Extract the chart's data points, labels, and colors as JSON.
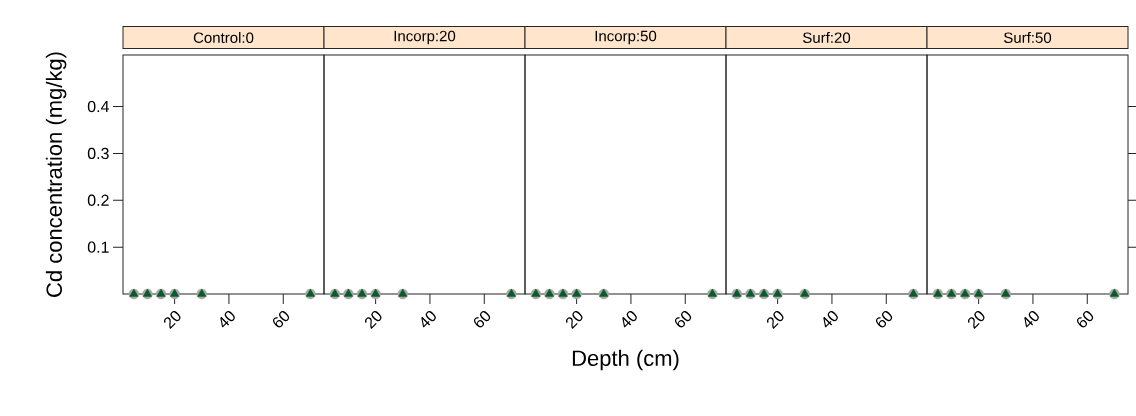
{
  "chart_data": [
    {
      "type": "scatter",
      "title": "Control:0",
      "ylabel": "Cd concentration (mg/kg)",
      "x": [
        5,
        10,
        15,
        20,
        30,
        70
      ],
      "series": [
        {
          "color": "#a6a6a6",
          "marker": "circle",
          "values": [
            0,
            0,
            0,
            0,
            0,
            0
          ]
        },
        {
          "color": "#0b5a2a",
          "marker": "triangle",
          "values": [
            0,
            0,
            0,
            0,
            0,
            0
          ]
        }
      ],
      "xlim": [
        1,
        75
      ],
      "ylim": [
        0,
        0.51
      ],
      "xticks": [
        20,
        40,
        60
      ],
      "yticks": [
        0.1,
        0.2,
        0.3,
        0.4
      ]
    },
    {
      "type": "scatter",
      "title": "Incorp:20",
      "x": [
        5,
        10,
        15,
        20,
        30,
        70
      ],
      "series": [
        {
          "color": "#a6a6a6",
          "marker": "circle",
          "values": [
            0,
            0,
            0,
            0,
            0,
            0
          ]
        },
        {
          "color": "#0b5a2a",
          "marker": "triangle",
          "values": [
            0,
            0,
            0,
            0,
            0,
            0
          ]
        }
      ],
      "xlim": [
        1,
        75
      ],
      "ylim": [
        0,
        0.51
      ],
      "xticks": [
        20,
        40,
        60
      ],
      "yticks": [
        0.1,
        0.2,
        0.3,
        0.4
      ],
      "tick_labels": "x"
    },
    {
      "type": "scatter",
      "title": "Incorp:50",
      "xlabel": "Depth (cm)",
      "x": [
        5,
        10,
        15,
        20,
        30,
        70
      ],
      "series": [
        {
          "color": "#a6a6a6",
          "marker": "circle",
          "values": [
            0,
            0,
            0,
            0,
            0,
            0
          ]
        },
        {
          "color": "#0b5a2a",
          "marker": "triangle",
          "values": [
            0,
            0,
            0,
            0,
            0,
            0
          ]
        }
      ],
      "xlim": [
        1,
        75
      ],
      "ylim": [
        0,
        0.51
      ],
      "xticks": [
        20,
        40,
        60
      ],
      "yticks": [
        0.1,
        0.2,
        0.3,
        0.4
      ],
      "tick_labels": "x"
    },
    {
      "type": "scatter",
      "title": "Surf:20",
      "x": [
        5,
        10,
        15,
        20,
        30,
        70
      ],
      "series": [
        {
          "color": "#a6a6a6",
          "marker": "circle",
          "values": [
            0,
            0,
            0,
            0,
            0,
            0
          ]
        },
        {
          "color": "#0b5a2a",
          "marker": "triangle",
          "values": [
            0,
            0,
            0,
            0,
            0,
            0
          ]
        }
      ],
      "xlim": [
        1,
        75
      ],
      "ylim": [
        0,
        0.51
      ],
      "xticks": [
        20,
        40,
        60
      ],
      "yticks": [
        0.1,
        0.2,
        0.3,
        0.4
      ],
      "tick_labels": "x"
    },
    {
      "type": "scatter",
      "title": "Surf:50",
      "x": [
        5,
        10,
        15,
        20,
        30,
        70
      ],
      "series": [
        {
          "color": "#a6a6a6",
          "marker": "circle",
          "values": [
            0,
            0,
            0,
            0,
            0,
            0
          ]
        },
        {
          "color": "#0b5a2a",
          "marker": "triangle",
          "values": [
            0,
            0,
            0,
            0,
            0,
            0
          ]
        }
      ],
      "xlim": [
        1,
        75
      ],
      "ylim": [
        0,
        0.51
      ],
      "xticks": [
        20,
        40,
        60
      ],
      "yticks": [
        0.1,
        0.2,
        0.3,
        0.4
      ],
      "tick_labels": "x"
    }
  ]
}
